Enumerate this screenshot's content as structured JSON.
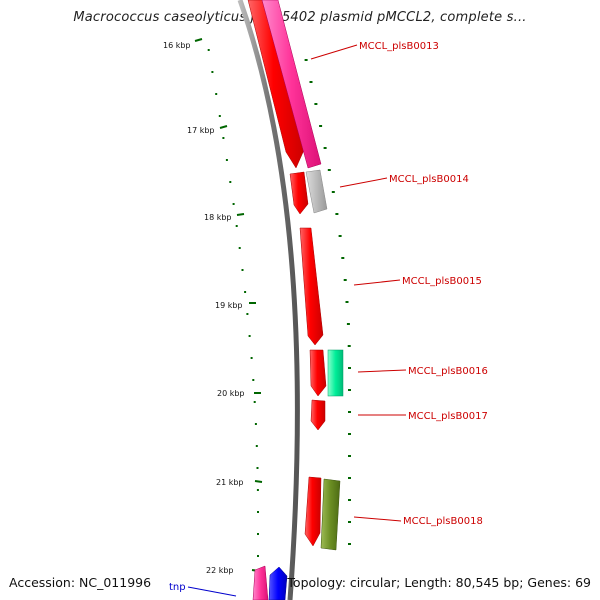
{
  "title": "Macrococcus caseolyticus JCSC5402 plasmid pMCCL2, complete s...",
  "footer": {
    "accession": "Accession: NC_011996",
    "topology": "Topology: circular; Length: 80,545 bp; Genes: 69"
  },
  "scale": {
    "ticks": [
      {
        "label": "16 kbp"
      },
      {
        "label": "17 kbp"
      },
      {
        "label": "18 kbp"
      },
      {
        "label": "19 kbp"
      },
      {
        "label": "20 kbp"
      },
      {
        "label": "21 kbp"
      },
      {
        "label": "22 kbp"
      }
    ]
  },
  "genes": [
    {
      "label": "MCCL_plsB0013",
      "color": "#cc0000"
    },
    {
      "label": "MCCL_plsB0014",
      "color": "#cc0000"
    },
    {
      "label": "MCCL_plsB0015",
      "color": "#cc0000"
    },
    {
      "label": "MCCL_plsB0016",
      "color": "#cc0000"
    },
    {
      "label": "MCCL_plsB0017",
      "color": "#cc0000"
    },
    {
      "label": "MCCL_plsB0018",
      "color": "#cc0000"
    },
    {
      "label": "tnp",
      "color": "#0000cc"
    }
  ],
  "colors": {
    "backbone": "#888888",
    "tick": "#006600",
    "cds": "#ff0000",
    "cog_pink": "#ff3399",
    "cog_grey": "#bbbbbb",
    "cog_teal": "#00ee99",
    "cog_olive": "#6b8e23",
    "cog_blue": "#0000ff"
  }
}
